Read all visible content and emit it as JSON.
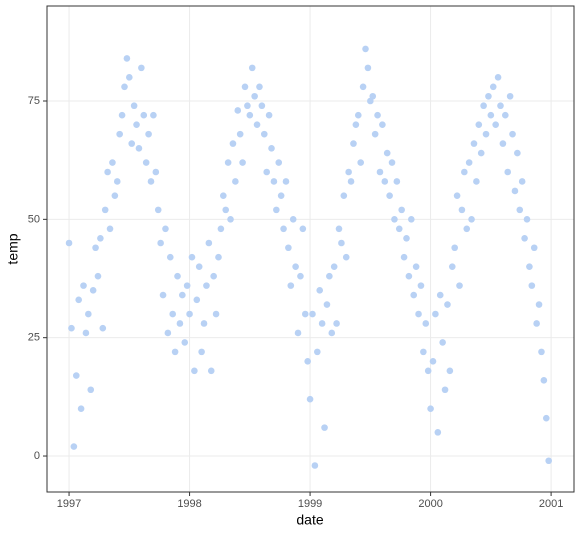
{
  "chart_data": {
    "type": "scatter",
    "x_label": "date",
    "y_label": "temp",
    "color": "#b8d1f4",
    "xlim": [
      1996.817,
      2001.19
    ],
    "ylim": [
      -7.6,
      95.07
    ],
    "xticks": [
      1997,
      1998,
      1999,
      2000,
      2001
    ],
    "yticks": [
      0,
      25,
      50,
      75
    ],
    "grid": true,
    "x": [
      1997,
      1997.02,
      1997.04,
      1997.06,
      1997.08,
      1997.1,
      1997.12,
      1997.14,
      1997.16,
      1997.18,
      1997.2,
      1997.22,
      1997.24,
      1997.26,
      1997.28,
      1997.3,
      1997.32,
      1997.34,
      1997.36,
      1997.38,
      1997.4,
      1997.42,
      1997.44,
      1997.46,
      1997.48,
      1997.5,
      1997.52,
      1997.54,
      1997.56,
      1997.58,
      1997.6,
      1997.62,
      1997.64,
      1997.66,
      1997.68,
      1997.7,
      1997.72,
      1997.74,
      1997.76,
      1997.78,
      1997.8,
      1997.82,
      1997.84,
      1997.86,
      1997.88,
      1997.9,
      1997.92,
      1997.94,
      1997.96,
      1997.98,
      1998,
      1998.02,
      1998.04,
      1998.06,
      1998.08,
      1998.1,
      1998.12,
      1998.14,
      1998.16,
      1998.18,
      1998.2,
      1998.22,
      1998.24,
      1998.26,
      1998.28,
      1998.3,
      1998.32,
      1998.34,
      1998.36,
      1998.38,
      1998.4,
      1998.42,
      1998.44,
      1998.46,
      1998.48,
      1998.5,
      1998.52,
      1998.54,
      1998.56,
      1998.58,
      1998.6,
      1998.62,
      1998.64,
      1998.66,
      1998.68,
      1998.7,
      1998.72,
      1998.74,
      1998.76,
      1998.78,
      1998.8,
      1998.82,
      1998.84,
      1998.86,
      1998.88,
      1998.9,
      1998.92,
      1998.94,
      1998.96,
      1998.98,
      1999,
      1999.02,
      1999.04,
      1999.06,
      1999.08,
      1999.1,
      1999.12,
      1999.14,
      1999.16,
      1999.18,
      1999.2,
      1999.22,
      1999.24,
      1999.26,
      1999.28,
      1999.3,
      1999.32,
      1999.34,
      1999.36,
      1999.38,
      1999.4,
      1999.42,
      1999.44,
      1999.46,
      1999.48,
      1999.5,
      1999.52,
      1999.54,
      1999.56,
      1999.58,
      1999.6,
      1999.62,
      1999.64,
      1999.66,
      1999.68,
      1999.7,
      1999.72,
      1999.74,
      1999.76,
      1999.78,
      1999.8,
      1999.82,
      1999.84,
      1999.86,
      1999.88,
      1999.9,
      1999.92,
      1999.94,
      1999.96,
      1999.98,
      2000,
      2000.02,
      2000.04,
      2000.06,
      2000.08,
      2000.1,
      2000.12,
      2000.14,
      2000.16,
      2000.18,
      2000.2,
      2000.22,
      2000.24,
      2000.26,
      2000.28,
      2000.3,
      2000.32,
      2000.34,
      2000.36,
      2000.38,
      2000.4,
      2000.42,
      2000.44,
      2000.46,
      2000.48,
      2000.5,
      2000.52,
      2000.54,
      2000.56,
      2000.58,
      2000.6,
      2000.62,
      2000.64,
      2000.66,
      2000.68,
      2000.7,
      2000.72,
      2000.74,
      2000.76,
      2000.78,
      2000.8,
      2000.82,
      2000.84,
      2000.86,
      2000.88,
      2000.9,
      2000.92,
      2000.94,
      2000.96,
      2000.98
    ],
    "values": [
      45,
      27,
      2,
      17,
      33,
      10,
      36,
      26,
      30,
      14,
      35,
      44,
      38,
      46,
      27,
      52,
      60,
      48,
      62,
      55,
      58,
      68,
      72,
      78,
      84,
      80,
      66,
      74,
      70,
      65,
      82,
      72,
      62,
      68,
      58,
      72,
      60,
      52,
      45,
      34,
      48,
      26,
      42,
      30,
      22,
      38,
      28,
      34,
      24,
      36,
      30,
      42,
      18,
      33,
      40,
      22,
      28,
      36,
      45,
      18,
      38,
      30,
      42,
      48,
      55,
      52,
      62,
      50,
      66,
      58,
      73,
      68,
      62,
      78,
      74,
      72,
      82,
      76,
      70,
      78,
      74,
      68,
      60,
      72,
      65,
      58,
      52,
      62,
      55,
      48,
      58,
      44,
      36,
      50,
      40,
      26,
      38,
      48,
      30,
      20,
      12,
      30,
      -2,
      22,
      35,
      28,
      6,
      32,
      38,
      26,
      40,
      28,
      48,
      45,
      55,
      42,
      60,
      58,
      66,
      70,
      72,
      62,
      78,
      86,
      82,
      75,
      76,
      68,
      72,
      60,
      70,
      58,
      64,
      55,
      62,
      50,
      58,
      48,
      52,
      42,
      46,
      38,
      50,
      34,
      40,
      30,
      36,
      22,
      28,
      18,
      10,
      20,
      30,
      5,
      34,
      24,
      14,
      32,
      18,
      40,
      44,
      55,
      36,
      52,
      60,
      48,
      62,
      50,
      66,
      58,
      70,
      64,
      74,
      68,
      76,
      72,
      78,
      70,
      80,
      74,
      66,
      72,
      60,
      76,
      68,
      56,
      64,
      52,
      58,
      46,
      50,
      40,
      36,
      44,
      28,
      32,
      22,
      16,
      8,
      -1
    ]
  }
}
